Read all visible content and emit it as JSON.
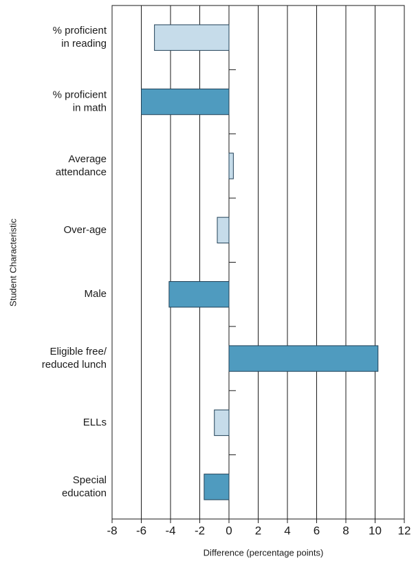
{
  "chart_data": {
    "type": "bar",
    "orientation": "horizontal",
    "xlabel": "Difference (percentage points)",
    "ylabel": "Student Characteristic",
    "categories": [
      [
        "% proficient",
        "in reading"
      ],
      [
        "% proficient",
        "in math"
      ],
      [
        "Average",
        "attendance"
      ],
      [
        "Over-age"
      ],
      [
        "Male"
      ],
      [
        "Eligible free/",
        "reduced lunch"
      ],
      [
        "ELLs"
      ],
      [
        "Special",
        "education"
      ]
    ],
    "values": [
      -5.1,
      -6.0,
      0.3,
      -0.8,
      -4.1,
      10.2,
      -1.0,
      -1.7
    ],
    "colors": [
      "#c6dcea",
      "#4f9bbf",
      "#c6dcea",
      "#c6dcea",
      "#4f9bbf",
      "#4f9bbf",
      "#c6dcea",
      "#4f9bbf"
    ],
    "xlim": [
      -8,
      12
    ],
    "xticks": [
      -8,
      -6,
      -4,
      -2,
      0,
      2,
      4,
      6,
      8,
      10,
      12
    ],
    "grid": true
  }
}
